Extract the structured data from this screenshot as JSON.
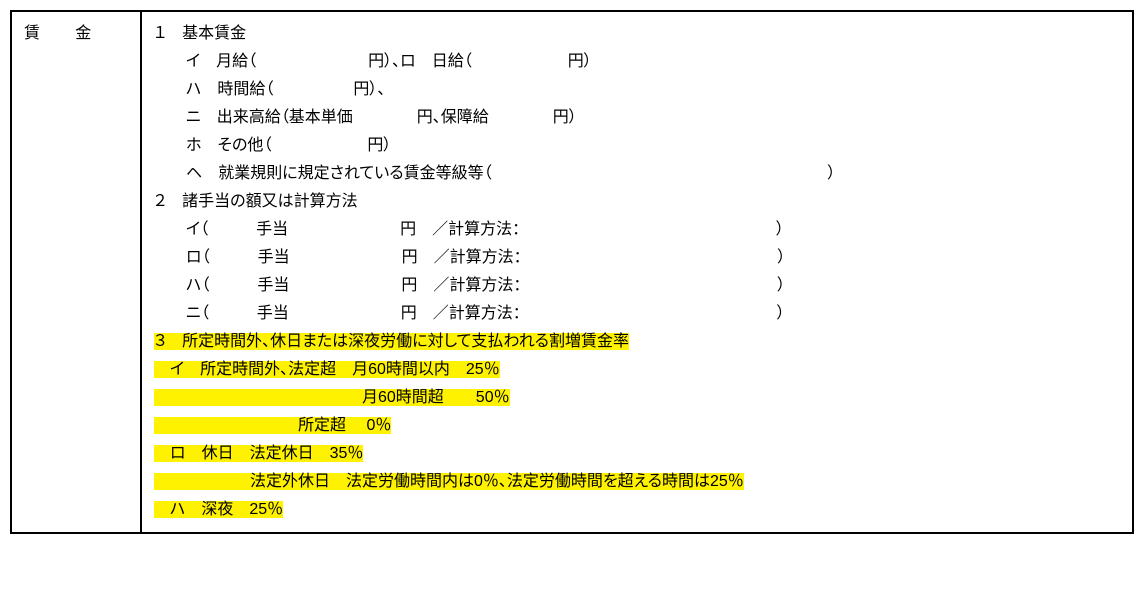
{
  "label": "賃　金",
  "section1_header": "１　基本賃金",
  "section1_i": "　　イ　月給（　　　　　　　円）、ロ　日給（　　　　　　円）",
  "section1_ha": "　　ハ　時間給（　　　　　円）、",
  "section1_ni": "　　ニ　出来高給（基本単価　　　　円、保障給　　　　円）",
  "section1_ho": "　　ホ　その他（　　　　　　円）",
  "section1_he": "　　ヘ　就業規則に規定されている賃金等級等（　　　　　　　　　　　　　　　　　　　　　）",
  "section2_header": "２　諸手当の額又は計算方法",
  "section2_i": "　　イ（　　　手当　　　　　　　円　／計算方法：　　　　　　　　　　　　　　　　）",
  "section2_ro": "　　ロ（　　　手当　　　　　　　円　／計算方法：　　　　　　　　　　　　　　　　）",
  "section2_ha": "　　ハ（　　　手当　　　　　　　円　／計算方法：　　　　　　　　　　　　　　　　）",
  "section2_ni": "　　ニ（　　　手当　　　　　　　円　／計算方法：　　　　　　　　　　　　　　　　）",
  "section3_header": "３　所定時間外、休日または深夜労働に対して支払われる割増賃金率",
  "section3_i_a": "　イ　所定時間外、法定超　月60時間以内　25％",
  "section3_i_b": "　　　　　　　　　　　　　月60時間超　　50％",
  "section3_i_c": "　　　　　　　　　所定超　 0％",
  "section3_ro_a": "　ロ　休日　法定休日　35％",
  "section3_ro_b": "　　　　　　法定外休日　法定労働時間内は0％、法定労働時間を超える時間は25％",
  "section3_ha": "　ハ　深夜　25％",
  "highlight_color": "#fff200",
  "border_color": "#000000",
  "background_color": "#ffffff",
  "font_size_pt": 16
}
